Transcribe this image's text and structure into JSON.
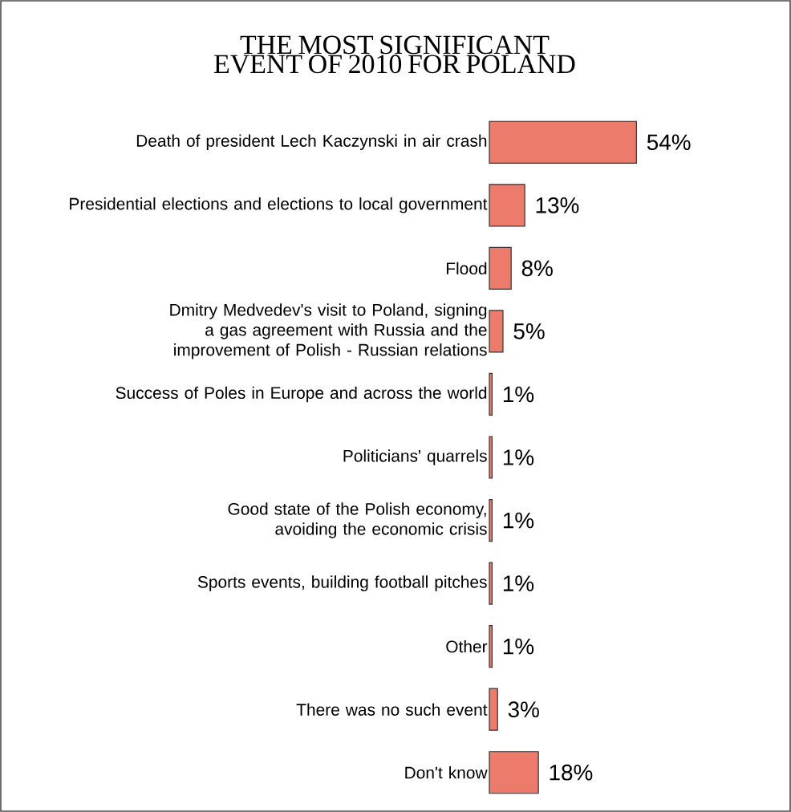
{
  "chart_data": {
    "type": "bar",
    "orientation": "horizontal",
    "title": "THE MOST SIGNIFICANT EVENT OF 2010 FOR POLAND",
    "categories": [
      "Death of president Lech Kaczynski in air crash",
      "Presidential elections and elections to local government",
      "Flood",
      "Dmitry Medvedev's visit to Poland, signing a gas agreement with Russia and the improvement of Polish - Russian relations",
      "Success of Poles in Europe and across the world",
      "Politicians' quarrels",
      "Good state of the Polish economy, avoiding the economic crisis",
      "Sports events, building football pitches",
      "Other",
      "There was no such event",
      "Don't know"
    ],
    "values": [
      54,
      13,
      8,
      5,
      1,
      1,
      1,
      1,
      1,
      3,
      18
    ],
    "value_labels": [
      "54%",
      "13%",
      "8%",
      "5%",
      "1%",
      "1%",
      "1%",
      "1%",
      "1%",
      "3%",
      "18%"
    ],
    "color": "#ec7b6c"
  }
}
